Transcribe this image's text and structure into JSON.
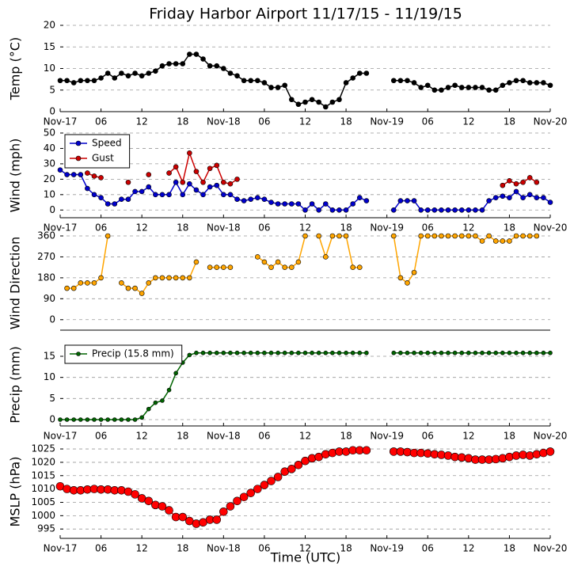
{
  "chart_data": [
    {
      "type": "line",
      "title": "Friday Harbor Airport 11/17/15 - 11/19/15",
      "ylabel": "Temp (°C)",
      "x": [
        0,
        1,
        2,
        3,
        4,
        5,
        6,
        7,
        8,
        9,
        10,
        11,
        12,
        13,
        14,
        15,
        16,
        17,
        18,
        19,
        20,
        21,
        22,
        23,
        24,
        25,
        26,
        27,
        28,
        29,
        30,
        31,
        32,
        33,
        34,
        35,
        36,
        37,
        38,
        39,
        40,
        41,
        42,
        43,
        44,
        45,
        46,
        47,
        48,
        49,
        50,
        51,
        52,
        53,
        54,
        55,
        56,
        57,
        58,
        59,
        60,
        61,
        62,
        63,
        64,
        65,
        66,
        67,
        68,
        69,
        70,
        71,
        72
      ],
      "series": [
        {
          "color": "#000000",
          "values": [
            7.2,
            7.2,
            6.7,
            7.2,
            7.2,
            7.2,
            7.8,
            8.9,
            7.8,
            8.9,
            8.3,
            8.9,
            8.3,
            8.9,
            9.4,
            10.6,
            11.1,
            11.1,
            11.1,
            13.3,
            13.3,
            12.2,
            10.6,
            10.6,
            10,
            8.9,
            8.3,
            7.2,
            7.2,
            7.2,
            6.7,
            5.6,
            5.6,
            6.1,
            2.8,
            1.7,
            2.2,
            2.8,
            2.2,
            1.1,
            2.2,
            2.8,
            6.7,
            7.8,
            8.9,
            8.9,
            null,
            null,
            null,
            7.2,
            7.2,
            7.2,
            6.7,
            5.6,
            6.1,
            5,
            5,
            5.6,
            6.1,
            5.6,
            5.6,
            5.6,
            5.6,
            5,
            5,
            6.1,
            6.7,
            7.2,
            7.2,
            6.7,
            6.7,
            6.7,
            6.1
          ]
        }
      ],
      "xlim": [
        0,
        72
      ],
      "xticks": [
        {
          "value": 0,
          "label": "Nov-17"
        },
        {
          "value": 6,
          "label": "06"
        },
        {
          "value": 12,
          "label": "12"
        },
        {
          "value": 18,
          "label": "18"
        },
        {
          "value": 24,
          "label": "Nov-18"
        },
        {
          "value": 30,
          "label": "06"
        },
        {
          "value": 36,
          "label": "12"
        },
        {
          "value": 42,
          "label": "18"
        },
        {
          "value": 48,
          "label": "Nov-19"
        },
        {
          "value": 54,
          "label": "06"
        },
        {
          "value": 60,
          "label": "12"
        },
        {
          "value": 66,
          "label": "18"
        },
        {
          "value": 72,
          "label": "Nov-20"
        }
      ],
      "ylim": [
        0,
        20
      ],
      "yticks": [
        0,
        5,
        10,
        15,
        20
      ],
      "grid": true
    },
    {
      "type": "line",
      "ylabel": "Wind (mph)",
      "legend": "upper left",
      "x": [
        0,
        1,
        2,
        3,
        4,
        5,
        6,
        7,
        8,
        9,
        10,
        11,
        12,
        13,
        14,
        15,
        16,
        17,
        18,
        19,
        20,
        21,
        22,
        23,
        24,
        25,
        26,
        27,
        28,
        29,
        30,
        31,
        32,
        33,
        34,
        35,
        36,
        37,
        38,
        39,
        40,
        41,
        42,
        43,
        44,
        45,
        46,
        47,
        48,
        49,
        50,
        51,
        52,
        53,
        54,
        55,
        56,
        57,
        58,
        59,
        60,
        61,
        62,
        63,
        64,
        65,
        66,
        67,
        68,
        69,
        70,
        71,
        72
      ],
      "series": [
        {
          "name": "Speed",
          "color": "#0000cc",
          "values": [
            26,
            23,
            23,
            23,
            14,
            10,
            8,
            4,
            4,
            7,
            7,
            12,
            12,
            15,
            10,
            10,
            10,
            18,
            10,
            17,
            13,
            10,
            15,
            16,
            10,
            10,
            7,
            6,
            7,
            8,
            7,
            5,
            4,
            4,
            4,
            4,
            0,
            4,
            0,
            4,
            0,
            0,
            0,
            4,
            8,
            6,
            null,
            null,
            null,
            0,
            6,
            6,
            6,
            0,
            0,
            0,
            0,
            0,
            0,
            0,
            0,
            0,
            0,
            6,
            8,
            9,
            8,
            12,
            8,
            10,
            8,
            8,
            5
          ]
        },
        {
          "name": "Gust",
          "color": "#cc0000",
          "values": [
            null,
            null,
            null,
            null,
            24,
            22,
            21,
            null,
            null,
            null,
            18,
            null,
            null,
            23,
            null,
            null,
            24,
            28,
            18,
            37,
            25,
            18,
            27,
            29,
            18,
            17,
            20,
            null,
            null,
            null,
            null,
            null,
            null,
            null,
            null,
            null,
            null,
            null,
            null,
            null,
            null,
            null,
            null,
            null,
            null,
            null,
            null,
            null,
            null,
            null,
            null,
            null,
            null,
            null,
            null,
            null,
            null,
            null,
            null,
            null,
            null,
            null,
            null,
            null,
            null,
            16,
            19,
            17,
            18,
            21,
            18,
            null,
            null
          ]
        }
      ],
      "xlim": [
        0,
        72
      ],
      "xticks": [
        {
          "value": 0,
          "label": "Nov-17"
        },
        {
          "value": 6,
          "label": "06"
        },
        {
          "value": 12,
          "label": "12"
        },
        {
          "value": 18,
          "label": "18"
        },
        {
          "value": 24,
          "label": "Nov-18"
        },
        {
          "value": 30,
          "label": "06"
        },
        {
          "value": 36,
          "label": "12"
        },
        {
          "value": 42,
          "label": "18"
        },
        {
          "value": 48,
          "label": "Nov-19"
        },
        {
          "value": 54,
          "label": "06"
        },
        {
          "value": 60,
          "label": "12"
        },
        {
          "value": 66,
          "label": "18"
        },
        {
          "value": 72,
          "label": "Nov-20"
        }
      ],
      "ylim": [
        -5,
        50
      ],
      "yticks": [
        0,
        10,
        20,
        30,
        40,
        50
      ],
      "grid": true
    },
    {
      "type": "line",
      "ylabel": "Wind Direction",
      "x": [
        0,
        1,
        2,
        3,
        4,
        5,
        6,
        7,
        8,
        9,
        10,
        11,
        12,
        13,
        14,
        15,
        16,
        17,
        18,
        19,
        20,
        21,
        22,
        23,
        24,
        25,
        26,
        27,
        28,
        29,
        30,
        31,
        32,
        33,
        34,
        35,
        36,
        37,
        38,
        39,
        40,
        41,
        42,
        43,
        44,
        45,
        46,
        47,
        48,
        49,
        50,
        51,
        52,
        53,
        54,
        55,
        56,
        57,
        58,
        59,
        60,
        61,
        62,
        63,
        64,
        65,
        66,
        67,
        68,
        69,
        70,
        71,
        72
      ],
      "series": [
        {
          "color": "#ffa500",
          "values": [
            null,
            135,
            135,
            158,
            158,
            158,
            180,
            360,
            null,
            158,
            135,
            135,
            113,
            158,
            180,
            180,
            180,
            180,
            180,
            180,
            248,
            null,
            225,
            225,
            225,
            225,
            null,
            null,
            null,
            270,
            248,
            225,
            248,
            225,
            225,
            248,
            360,
            null,
            360,
            270,
            360,
            360,
            360,
            225,
            225,
            null,
            null,
            null,
            null,
            360,
            180,
            158,
            203,
            360,
            360,
            360,
            360,
            360,
            360,
            360,
            360,
            360,
            338,
            360,
            338,
            338,
            338,
            360,
            360,
            360,
            360,
            null,
            null
          ]
        }
      ],
      "xlim": [
        0,
        72
      ],
      "ylim": [
        -45,
        360
      ],
      "yticks": [
        0,
        90,
        180,
        270,
        360
      ],
      "grid": true
    },
    {
      "type": "line",
      "ylabel": "Precip (mm)",
      "legend": "upper left",
      "x": [
        0,
        1,
        2,
        3,
        4,
        5,
        6,
        7,
        8,
        9,
        10,
        11,
        12,
        13,
        14,
        15,
        16,
        17,
        18,
        19,
        20,
        21,
        22,
        23,
        24,
        25,
        26,
        27,
        28,
        29,
        30,
        31,
        32,
        33,
        34,
        35,
        36,
        37,
        38,
        39,
        40,
        41,
        42,
        43,
        44,
        45,
        46,
        47,
        48,
        49,
        50,
        51,
        52,
        53,
        54,
        55,
        56,
        57,
        58,
        59,
        60,
        61,
        62,
        63,
        64,
        65,
        66,
        67,
        68,
        69,
        70,
        71,
        72
      ],
      "series": [
        {
          "name": "Precip (15.8 mm)",
          "color": "#006400",
          "values": [
            0,
            0,
            0,
            0,
            0,
            0,
            0,
            0,
            0,
            0,
            0,
            0,
            0.5,
            2.5,
            4,
            4.5,
            7,
            11,
            13.5,
            15.3,
            15.8,
            15.8,
            15.8,
            15.8,
            15.8,
            15.8,
            15.8,
            15.8,
            15.8,
            15.8,
            15.8,
            15.8,
            15.8,
            15.8,
            15.8,
            15.8,
            15.8,
            15.8,
            15.8,
            15.8,
            15.8,
            15.8,
            15.8,
            15.8,
            15.8,
            15.8,
            null,
            null,
            null,
            15.8,
            15.8,
            15.8,
            15.8,
            15.8,
            15.8,
            15.8,
            15.8,
            15.8,
            15.8,
            15.8,
            15.8,
            15.8,
            15.8,
            15.8,
            15.8,
            15.8,
            15.8,
            15.8,
            15.8,
            15.8,
            15.8,
            15.8,
            15.8
          ]
        }
      ],
      "xlim": [
        0,
        72
      ],
      "xticks": [
        {
          "value": 0,
          "label": "Nov-17"
        },
        {
          "value": 6,
          "label": "06"
        },
        {
          "value": 12,
          "label": "12"
        },
        {
          "value": 18,
          "label": "18"
        },
        {
          "value": 24,
          "label": "Nov-18"
        },
        {
          "value": 30,
          "label": "06"
        },
        {
          "value": 36,
          "label": "12"
        },
        {
          "value": 42,
          "label": "18"
        },
        {
          "value": 48,
          "label": "Nov-19"
        },
        {
          "value": 54,
          "label": "06"
        },
        {
          "value": 60,
          "label": "12"
        },
        {
          "value": 66,
          "label": "18"
        },
        {
          "value": 72,
          "label": "Nov-20"
        }
      ],
      "ylim": [
        -1.5,
        18
      ],
      "yticks": [
        0,
        5,
        10,
        15
      ],
      "grid": true
    },
    {
      "type": "line",
      "ylabel": "MSLP (hPa)",
      "xlabel": "Time (UTC)",
      "x": [
        0,
        1,
        2,
        3,
        4,
        5,
        6,
        7,
        8,
        9,
        10,
        11,
        12,
        13,
        14,
        15,
        16,
        17,
        18,
        19,
        20,
        21,
        22,
        23,
        24,
        25,
        26,
        27,
        28,
        29,
        30,
        31,
        32,
        33,
        34,
        35,
        36,
        37,
        38,
        39,
        40,
        41,
        42,
        43,
        44,
        45,
        46,
        47,
        48,
        49,
        50,
        51,
        52,
        53,
        54,
        55,
        56,
        57,
        58,
        59,
        60,
        61,
        62,
        63,
        64,
        65,
        66,
        67,
        68,
        69,
        70,
        71,
        72
      ],
      "series": [
        {
          "color": "#ff0000",
          "values": [
            1011,
            1010,
            1009.5,
            1009.5,
            1009.8,
            1010,
            1009.8,
            1009.8,
            1009.5,
            1009.5,
            1009,
            1008,
            1006.5,
            1005.5,
            1004,
            1003.5,
            1002,
            999.5,
            999.5,
            998,
            997,
            997.5,
            998.5,
            998.5,
            1001.5,
            1003.5,
            1005.5,
            1007,
            1008.5,
            1010,
            1011.5,
            1013,
            1014.5,
            1016.5,
            1017.5,
            1019,
            1020.5,
            1021.5,
            1022,
            1023,
            1023.5,
            1024,
            1024,
            1024.5,
            1024.5,
            1024.5,
            null,
            null,
            null,
            1024,
            1024,
            1023.8,
            1023.5,
            1023.5,
            1023.3,
            1023,
            1022.8,
            1022.5,
            1022,
            1021.8,
            1021.5,
            1021,
            1021,
            1021,
            1021.2,
            1021.5,
            1022,
            1022.5,
            1022.8,
            1022.5,
            1023,
            1023.5,
            1024
          ]
        }
      ],
      "xlim": [
        0,
        72
      ],
      "xticks": [
        {
          "value": 0,
          "label": "Nov-17"
        },
        {
          "value": 6,
          "label": "06"
        },
        {
          "value": 12,
          "label": "12"
        },
        {
          "value": 18,
          "label": "18"
        },
        {
          "value": 24,
          "label": "Nov-18"
        },
        {
          "value": 30,
          "label": "06"
        },
        {
          "value": 36,
          "label": "12"
        },
        {
          "value": 42,
          "label": "18"
        },
        {
          "value": 48,
          "label": "Nov-19"
        },
        {
          "value": 54,
          "label": "06"
        },
        {
          "value": 60,
          "label": "12"
        },
        {
          "value": 66,
          "label": "18"
        },
        {
          "value": 72,
          "label": "Nov-20"
        }
      ],
      "ylim": [
        991.5,
        1026.5
      ],
      "yticks": [
        995,
        1000,
        1005,
        1010,
        1015,
        1020,
        1025
      ],
      "grid": true
    }
  ]
}
